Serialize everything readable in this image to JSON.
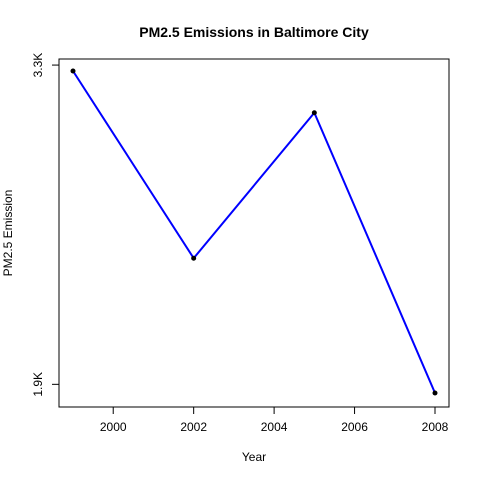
{
  "chart_data": {
    "type": "line",
    "title": "PM2.5 Emissions in Baltimore City",
    "xlabel": "Year",
    "ylabel": "PM2.5 Emission",
    "x": [
      1999,
      2002,
      2005,
      2008
    ],
    "series": [
      {
        "values": [
          3274,
          2453,
          3091,
          1862
        ],
        "color": "#0000ff"
      }
    ],
    "xlim": [
      1999,
      2008
    ],
    "ylim": [
      1862,
      3274
    ],
    "xticks": [
      {
        "value": 2000,
        "label": "2000"
      },
      {
        "value": 2002,
        "label": "2002"
      },
      {
        "value": 2004,
        "label": "2004"
      },
      {
        "value": 2006,
        "label": "2006"
      },
      {
        "value": 2008,
        "label": "2008"
      }
    ],
    "yticks": [
      {
        "value": 1900,
        "label": "1.9K"
      },
      {
        "value": 3300,
        "label": "3.3K"
      }
    ],
    "grid": false,
    "point_color": "#000000"
  }
}
